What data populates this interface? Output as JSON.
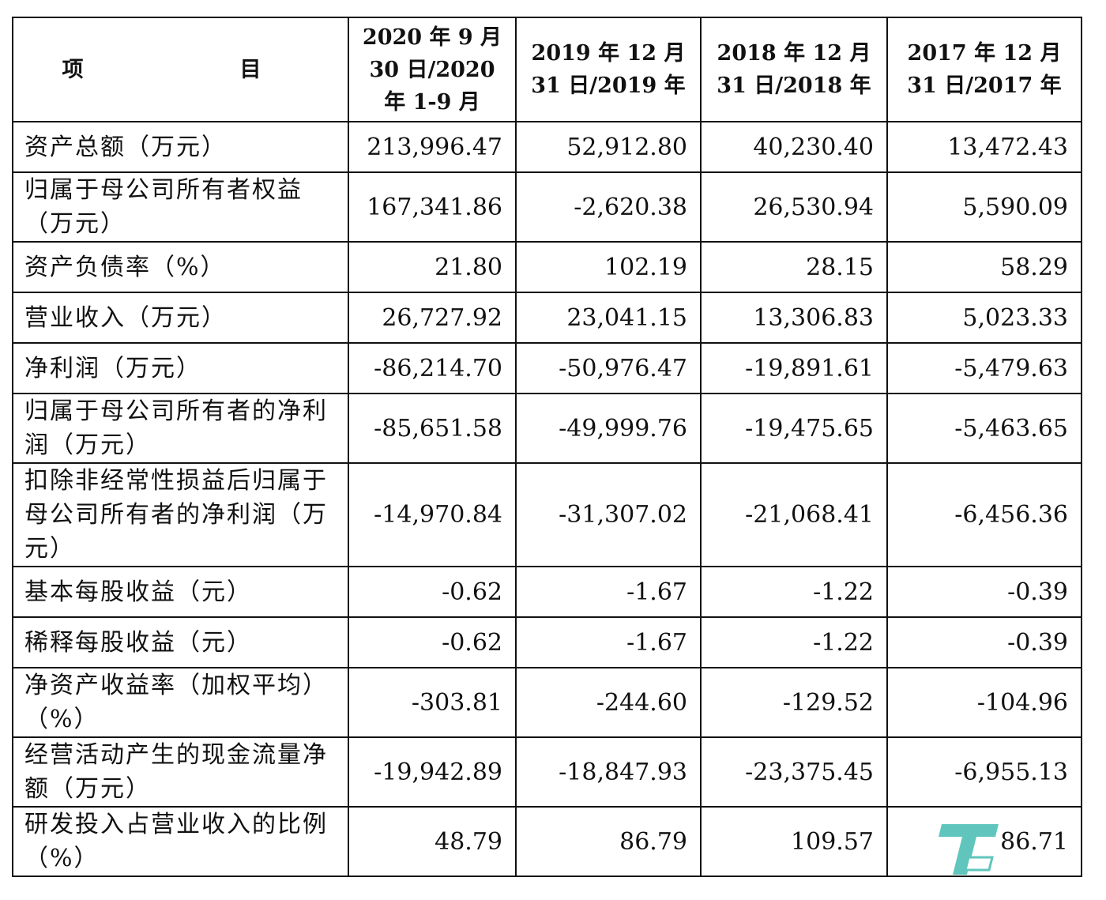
{
  "headers": [
    "项　　目",
    "2020 年 9 月 30 日/2020 年 1-9 月",
    "2019 年 12 月 31 日/2019 年",
    "2018 年 12 月 31 日/2018 年",
    "2017 年 12 月 31 日/2017 年"
  ],
  "rows": [
    {
      "label": "资产总额（万元）",
      "values": [
        "213,996.47",
        "52,912.80",
        "40,230.40",
        "13,472.43"
      ]
    },
    {
      "label": "归属于母公司所有者权益（万元）",
      "values": [
        "167,341.86",
        "-2,620.38",
        "26,530.94",
        "5,590.09"
      ]
    },
    {
      "label": "资产负债率（%）",
      "values": [
        "21.80",
        "102.19",
        "28.15",
        "58.29"
      ]
    },
    {
      "label": "营业收入（万元）",
      "values": [
        "26,727.92",
        "23,041.15",
        "13,306.83",
        "5,023.33"
      ]
    },
    {
      "label": "净利润（万元）",
      "values": [
        "-86,214.70",
        "-50,976.47",
        "-19,891.61",
        "-5,479.63"
      ]
    },
    {
      "label": "归属于母公司所有者的净利润（万元）",
      "values": [
        "-85,651.58",
        "-49,999.76",
        "-19,475.65",
        "-5,463.65"
      ]
    },
    {
      "label": "扣除非经常性损益后归属于母公司所有者的净利润（万元）",
      "values": [
        "-14,970.84",
        "-31,307.02",
        "-21,068.41",
        "-6,456.36"
      ]
    },
    {
      "label": "基本每股收益（元）",
      "values": [
        "-0.62",
        "-1.67",
        "-1.22",
        "-0.39"
      ]
    },
    {
      "label": "稀释每股收益（元）",
      "values": [
        "-0.62",
        "-1.67",
        "-1.22",
        "-0.39"
      ]
    },
    {
      "label": "净资产收益率（加权平均）（%）",
      "values": [
        "-303.81",
        "-244.60",
        "-129.52",
        "-104.96"
      ]
    },
    {
      "label": "经营活动产生的现金流量净额（万元）",
      "values": [
        "-19,942.89",
        "-18,847.93",
        "-23,375.45",
        "-6,955.13"
      ]
    },
    {
      "label": "研发投入占营业收入的比例（%）",
      "values": [
        "48.79",
        "86.79",
        "109.57",
        "86.71"
      ]
    }
  ],
  "watermark": {
    "text": "钛媒体",
    "color": "#2bb3a8"
  }
}
